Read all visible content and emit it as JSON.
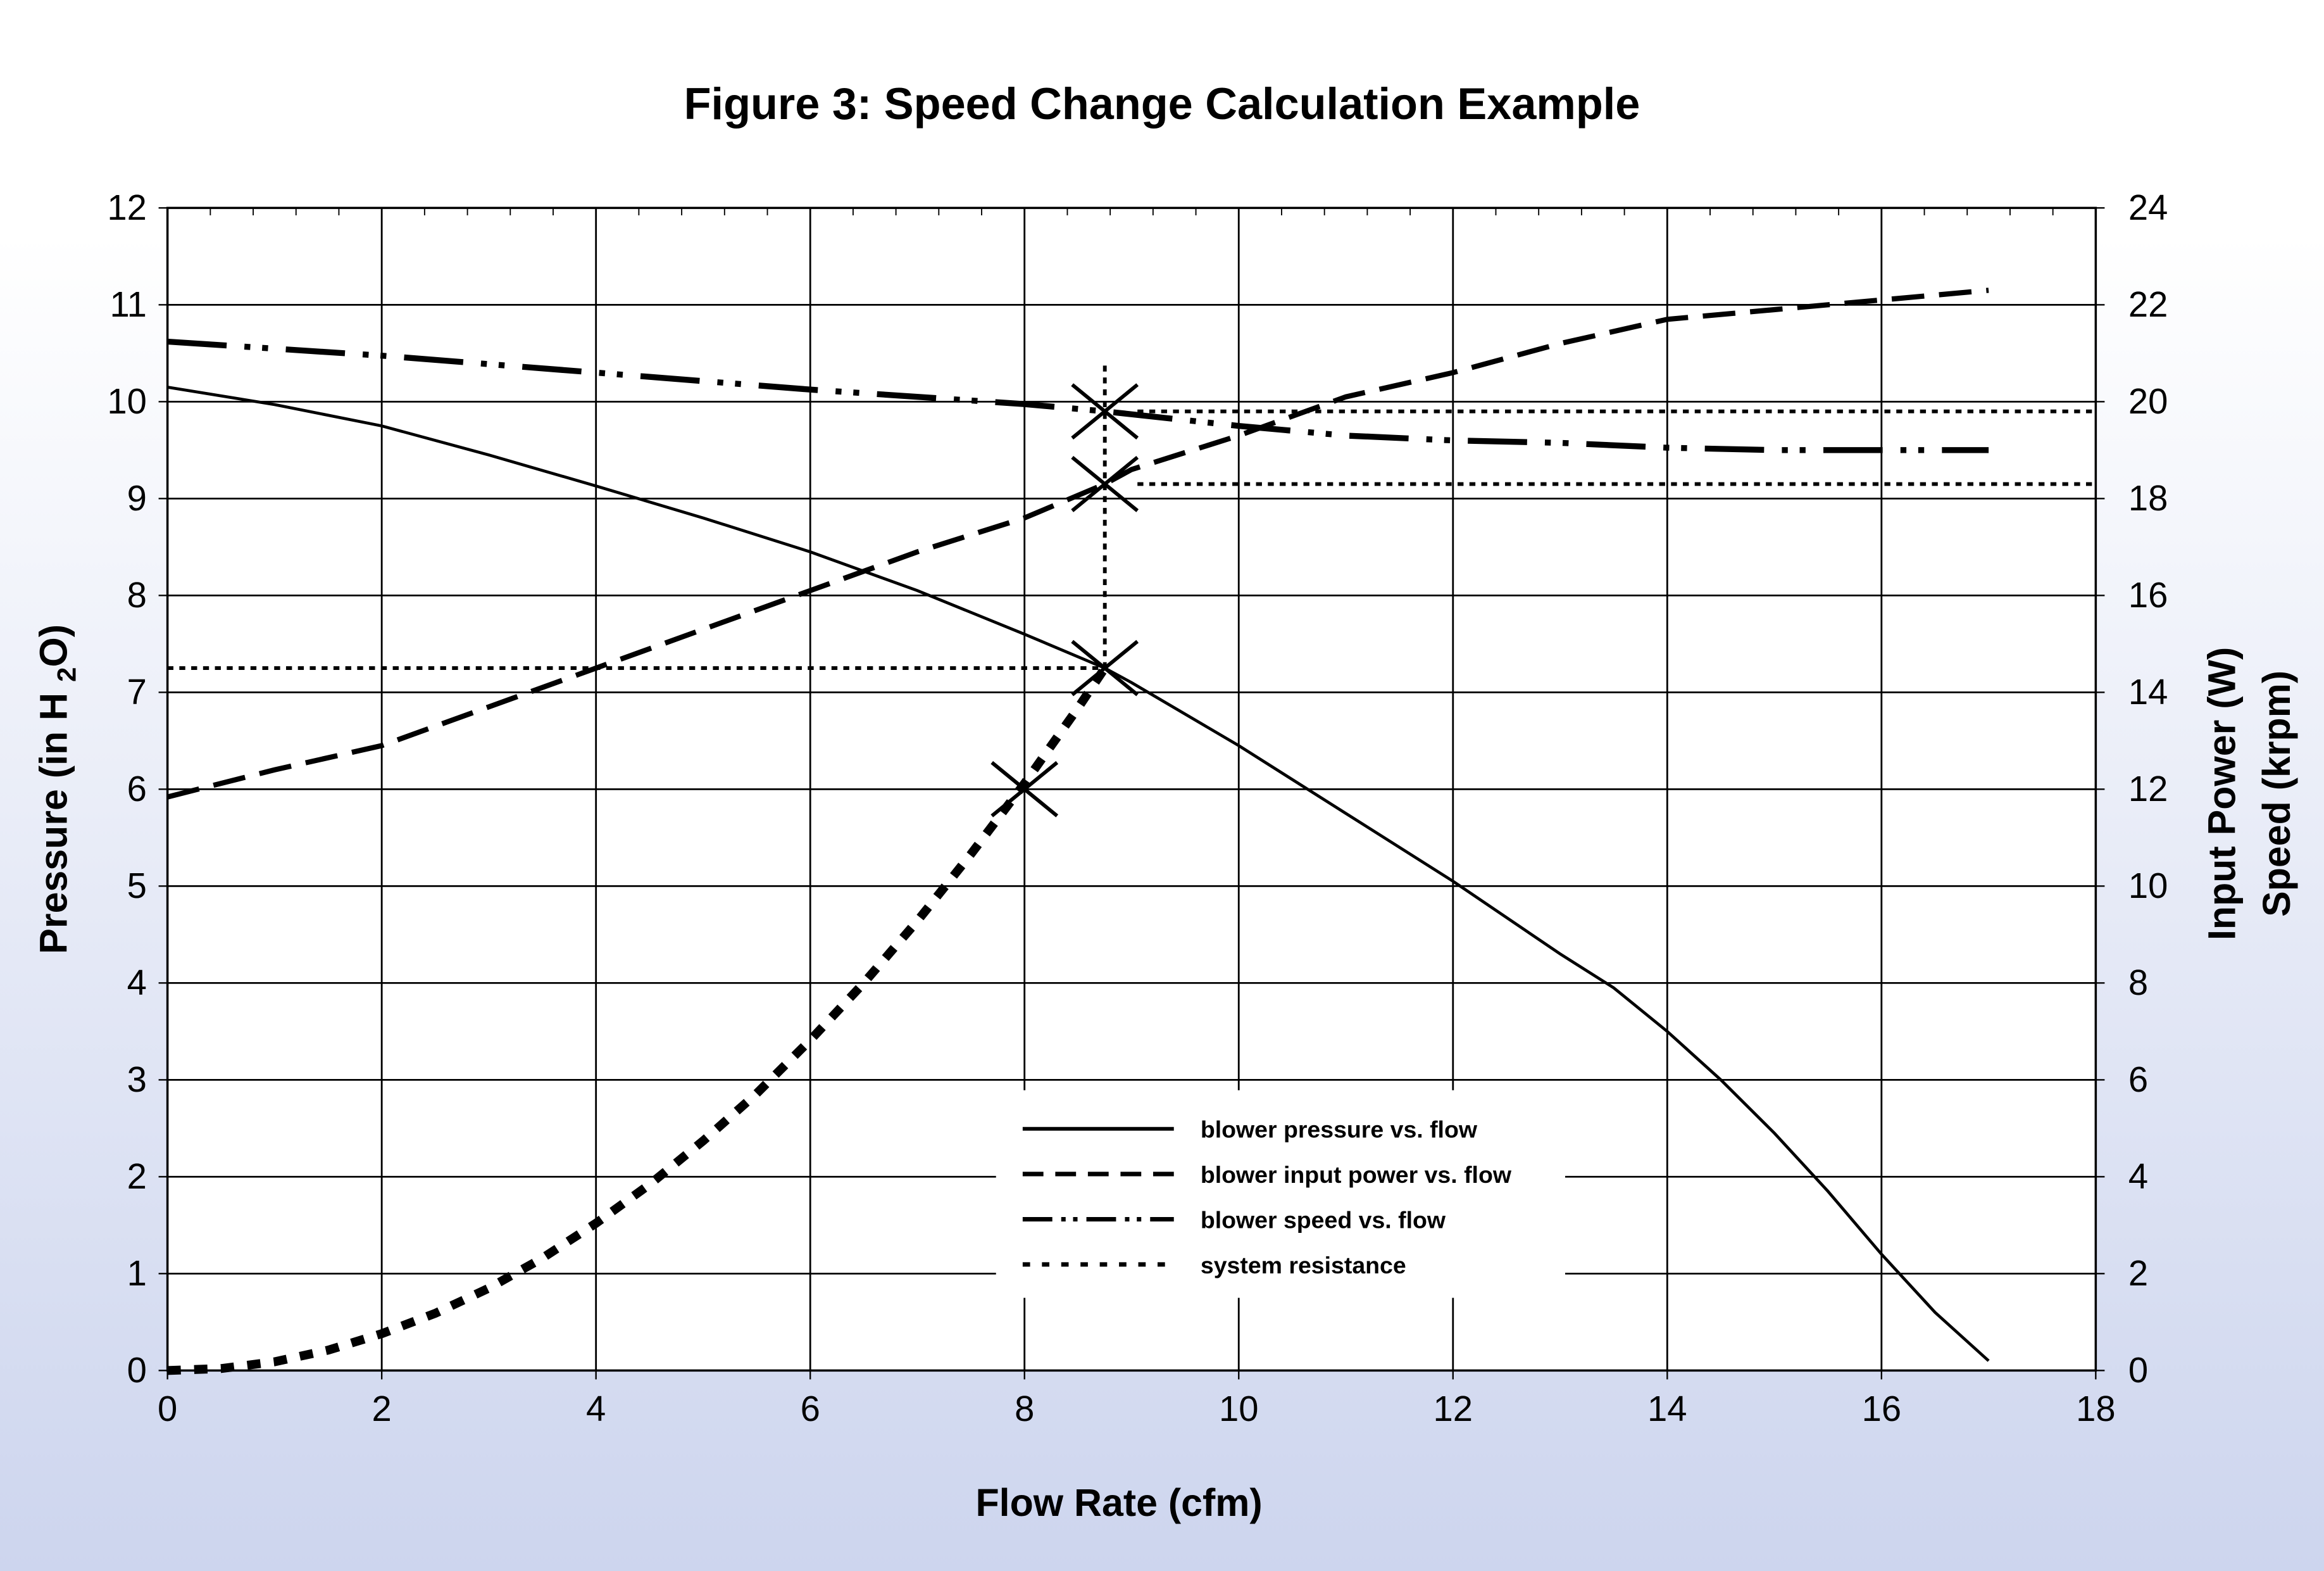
{
  "chart_data": {
    "type": "line",
    "title": "Figure 3:  Speed Change Calculation Example",
    "xlabel": "Flow Rate (cfm)",
    "ylabel": "Pressure (in H 2O)",
    "ylabel_parts": [
      "Pressure (in H ",
      "2",
      "O)"
    ],
    "y2label": [
      "Input Power (W)",
      "Speed (krpm)"
    ],
    "xlim": [
      0,
      18
    ],
    "ylim": [
      0,
      12
    ],
    "y2lim": [
      0,
      24
    ],
    "xticks": [
      0,
      2,
      4,
      6,
      8,
      10,
      12,
      14,
      16,
      18
    ],
    "yticks": [
      0,
      1,
      2,
      3,
      4,
      5,
      6,
      7,
      8,
      9,
      10,
      11,
      12
    ],
    "y2ticks": [
      0,
      2,
      4,
      6,
      8,
      10,
      12,
      14,
      16,
      18,
      20,
      22,
      24
    ],
    "grid": true,
    "legend_placement": "bottom-center",
    "series": [
      {
        "name": "blower pressure vs. flow",
        "axis": "left",
        "style": "solid",
        "x": [
          0,
          1,
          2,
          3,
          4,
          5,
          6,
          7,
          8,
          8.75,
          9,
          10,
          11,
          12,
          13,
          13.5,
          14,
          14.5,
          15,
          15.5,
          16,
          16.5,
          17
        ],
        "y": [
          10.15,
          9.97,
          9.75,
          9.45,
          9.13,
          8.8,
          8.45,
          8.05,
          7.6,
          7.25,
          7.1,
          6.45,
          5.75,
          5.05,
          4.3,
          3.95,
          3.5,
          3.0,
          2.45,
          1.85,
          1.2,
          0.6,
          0.1
        ]
      },
      {
        "name": "blower input power vs. flow",
        "axis": "right",
        "style": "dashed",
        "x": [
          0,
          1,
          2,
          3,
          4,
          5,
          6,
          7,
          8,
          8.75,
          9,
          10,
          11,
          12,
          13,
          14,
          15,
          16,
          17
        ],
        "y": [
          11.84,
          12.4,
          12.9,
          13.7,
          14.5,
          15.3,
          16.1,
          16.9,
          17.6,
          18.3,
          18.6,
          19.3,
          20.1,
          20.6,
          21.2,
          21.7,
          21.9,
          22.1,
          22.3
        ]
      },
      {
        "name": "blower speed vs. flow",
        "axis": "right",
        "style": "dash-dot",
        "x": [
          0,
          2,
          4,
          6,
          8,
          8.75,
          10,
          11,
          12,
          13,
          14,
          15,
          16,
          17
        ],
        "y": [
          21.24,
          20.95,
          20.6,
          20.25,
          19.95,
          19.8,
          19.5,
          19.3,
          19.2,
          19.15,
          19.05,
          19.0,
          19.0,
          19.0
        ]
      },
      {
        "name": "system resistance",
        "axis": "left",
        "style": "dotted",
        "x": [
          0,
          0.5,
          1,
          1.5,
          2,
          2.5,
          3,
          3.5,
          4,
          4.5,
          5,
          5.5,
          6,
          6.5,
          7,
          7.5,
          8,
          8.5,
          8.75
        ],
        "y": [
          0,
          0.02,
          0.09,
          0.21,
          0.38,
          0.59,
          0.85,
          1.16,
          1.52,
          1.92,
          2.37,
          2.86,
          3.41,
          4.0,
          4.64,
          5.33,
          6.06,
          6.84,
          7.25
        ]
      }
    ],
    "markers": [
      {
        "x": 8,
        "y": 6.0,
        "axis": "left"
      },
      {
        "x": 8.75,
        "y": 7.25,
        "axis": "left"
      },
      {
        "x": 8.75,
        "y": 18.3,
        "axis": "right"
      },
      {
        "x": 8.75,
        "y": 19.8,
        "axis": "right"
      }
    ],
    "reference_lines": [
      {
        "type": "h",
        "axis": "left",
        "y": 7.25,
        "x_from": 0,
        "x_to": 8.75
      },
      {
        "type": "v",
        "x": 8.75,
        "y_from": 7.25,
        "y_to": 10.4
      },
      {
        "type": "h",
        "axis": "right",
        "y": 19.8,
        "x_from": 8.75,
        "x_to": 18
      },
      {
        "type": "h",
        "axis": "right",
        "y": 18.3,
        "x_from": 8.75,
        "x_to": 18
      }
    ]
  }
}
